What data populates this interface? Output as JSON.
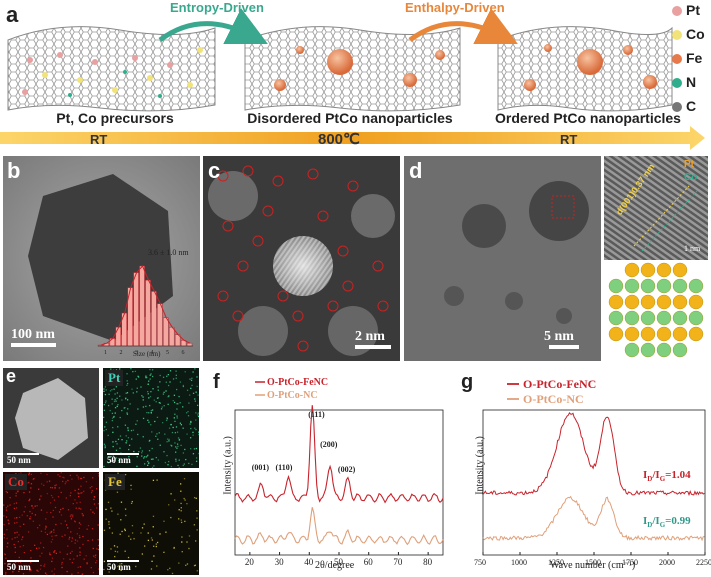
{
  "panel_a": {
    "label": "a",
    "arrow1": "Entropy-Driven",
    "arrow2": "Enthalpy-Driven",
    "captions": [
      "Pt, Co precursors",
      "Disordered PtCo nanoparticles",
      "Ordered PtCo nanoparticles"
    ],
    "temp_bar": [
      "RT",
      "800℃",
      "RT"
    ],
    "legend": [
      {
        "label": "Pt",
        "color": "#e8a0a0"
      },
      {
        "label": "Co",
        "color": "#f2e27a"
      },
      {
        "label": "Fe",
        "color": "#e8794a"
      },
      {
        "label": "N",
        "color": "#2fae8e"
      },
      {
        "label": "C",
        "color": "#777777"
      }
    ]
  },
  "panel_b": {
    "label": "b",
    "scale": "100 nm",
    "hist_label": "3.6 ± 1.0 nm",
    "hist_xlabel": "Size (nm)",
    "hist_ticks": [
      "1",
      "2",
      "3",
      "4",
      "5",
      "6"
    ],
    "hist_values": [
      1,
      3,
      8,
      20,
      35,
      62,
      78,
      85,
      70,
      58,
      45,
      30,
      20,
      12,
      6,
      3
    ]
  },
  "panel_c": {
    "label": "c",
    "scale": "2 nm"
  },
  "panel_d": {
    "label": "d",
    "scale": "5 nm",
    "inset_text": "d(001)0.37 nm",
    "inset_scale": "1 nm",
    "inset_legend": [
      "Pt",
      "Co"
    ]
  },
  "panel_e": {
    "label": "e",
    "maps": [
      {
        "name": "",
        "scale": "50 nm"
      },
      {
        "name": "Pt",
        "scale": "50 nm"
      },
      {
        "name": "Co",
        "scale": "50 nm"
      },
      {
        "name": "Fe",
        "scale": "50 nm"
      }
    ]
  },
  "panel_f": {
    "label": "f",
    "legend": [
      "O-PtCo-FeNC",
      "O-PtCo-NC"
    ],
    "ylabel": "Intensity (a.u.)",
    "xlabel": "2θ/degree",
    "xticks": [
      "20",
      "30",
      "40",
      "50",
      "60",
      "70",
      "80"
    ],
    "peaks": [
      "(001)",
      "(110)",
      "(111)",
      "(200)",
      "(002)"
    ]
  },
  "panel_g": {
    "label": "g",
    "legend": [
      "O-PtCo-FeNC",
      "O-PtCo-NC"
    ],
    "ylabel": "Intensity (a.u.)",
    "xlabel": "Wave number (cm⁻¹)",
    "xticks": [
      "750",
      "1000",
      "1250",
      "1500",
      "1750",
      "2000",
      "2250"
    ],
    "ratio1": "1.04",
    "ratio2": "0.99"
  },
  "colors": {
    "red": "#c8232c",
    "salmon": "#e0a07a",
    "teal": "#2f9a8a",
    "orange": "#e8873a"
  }
}
